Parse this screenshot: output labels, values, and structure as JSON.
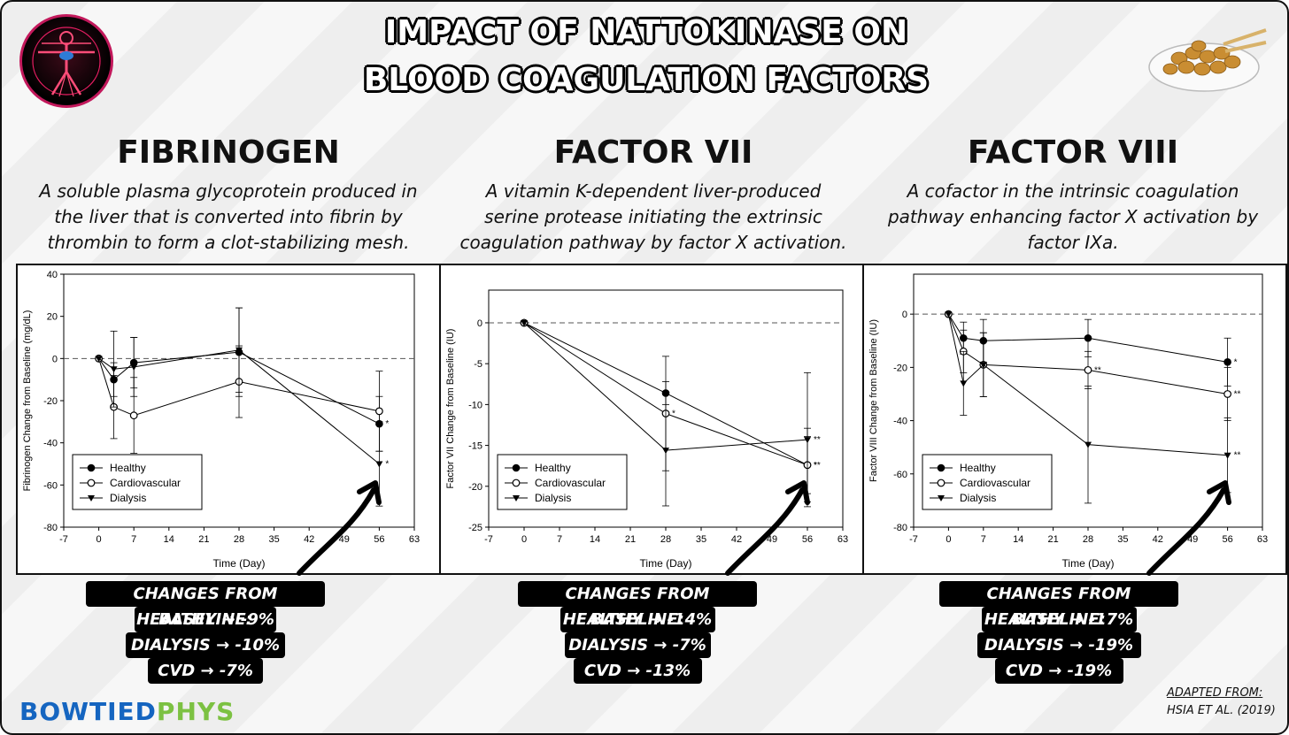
{
  "title": {
    "line1": "IMPACT OF NATTOKINASE ON",
    "line2": "BLOOD COAGULATION FACTORS"
  },
  "sections": [
    {
      "heading": "FIBRINOGEN",
      "description": [
        "A soluble plasma glycoprotein produced in",
        "the liver that is converted into fibrin by",
        "thrombin to form a clot-stabilizing mesh."
      ],
      "changes": {
        "header": "CHANGES FROM BASELINE:",
        "healthy": "HEALTHY → -9%",
        "dialysis": "DIALYSIS → -10%",
        "cvd": "CVD → -7%"
      }
    },
    {
      "heading": "FACTOR VII",
      "description": [
        "A vitamin K-dependent liver-produced",
        "serine protease initiating the extrinsic",
        "coagulation pathway by factor X activation."
      ],
      "changes": {
        "header": "CHANGES FROM BASELINE:",
        "healthy": "HEALTHY → -14%",
        "dialysis": "DIALYSIS → -7%",
        "cvd": "CVD → -13%"
      }
    },
    {
      "heading": "FACTOR VIII",
      "description": [
        "A cofactor in the intrinsic coagulation",
        "pathway enhancing factor X activation by",
        "factor IXa."
      ],
      "changes": {
        "header": "CHANGES FROM BASELINE:",
        "healthy": "HEALTHY → -17%",
        "dialysis": "DIALYSIS → -19%",
        "cvd": "CVD → -19%"
      }
    }
  ],
  "brand": {
    "part1": "BOWTIED",
    "part2": "PHYS"
  },
  "attribution": {
    "line1": "ADAPTED FROM:",
    "line2": "HSIA ET AL. (2019)"
  },
  "chart_data": [
    {
      "type": "line",
      "title": "FIBRINOGEN",
      "xlabel": "Time (Day)",
      "ylabel": "Fibrinogen Change from Baseline (mg/dL)",
      "xlim": [
        -7,
        63
      ],
      "ylim": [
        -80,
        40
      ],
      "xticks": [
        -7,
        0,
        7,
        14,
        21,
        28,
        35,
        42,
        49,
        56,
        63
      ],
      "yticks": [
        -80,
        -60,
        -40,
        -20,
        0,
        20,
        40
      ],
      "legend": "bottom-left",
      "reference_line": 0,
      "series": [
        {
          "name": "Healthy",
          "marker": "filled-circle",
          "x": [
            0,
            3,
            7,
            28,
            56
          ],
          "y": [
            0,
            -10,
            -2,
            3,
            -31
          ],
          "err": [
            0,
            8,
            12,
            21,
            13
          ],
          "sig": [
            "",
            "",
            "",
            "",
            "*"
          ]
        },
        {
          "name": "Cardiovascular",
          "marker": "open-circle",
          "x": [
            0,
            3,
            7,
            28,
            56
          ],
          "y": [
            0,
            -23,
            -27,
            -11,
            -25
          ],
          "err": [
            0,
            15,
            18,
            17,
            19
          ],
          "sig": [
            "",
            "",
            "",
            "",
            ""
          ]
        },
        {
          "name": "Dialysis",
          "marker": "filled-triangle",
          "x": [
            0,
            3,
            7,
            28,
            56
          ],
          "y": [
            0,
            -5,
            -4,
            4,
            -50
          ],
          "err": [
            0,
            18,
            14,
            20,
            20
          ],
          "sig": [
            "",
            "",
            "",
            "",
            "*"
          ]
        }
      ]
    },
    {
      "type": "line",
      "title": "FACTOR VII",
      "xlabel": "Time (Day)",
      "ylabel": "Factor VII Change from Baseline (IU)",
      "xlim": [
        -7,
        63
      ],
      "ylim": [
        -25,
        4
      ],
      "xticks": [
        -7,
        0,
        7,
        14,
        21,
        28,
        35,
        42,
        49,
        56,
        63
      ],
      "yticks": [
        -25,
        -20,
        -15,
        -10,
        -5,
        0
      ],
      "legend": "bottom-left",
      "reference_line": 0,
      "series": [
        {
          "name": "Healthy",
          "marker": "filled-circle",
          "x": [
            0,
            28,
            56
          ],
          "y": [
            0,
            -8.6,
            -17.4
          ],
          "err": [
            0,
            1.4,
            3.5
          ],
          "sig": [
            "",
            "",
            "*"
          ]
        },
        {
          "name": "Cardiovascular",
          "marker": "open-circle",
          "x": [
            0,
            28,
            56
          ],
          "y": [
            0,
            -11.1,
            -17.4
          ],
          "err": [
            0,
            7,
            4.5
          ],
          "sig": [
            "",
            "*",
            "**"
          ]
        },
        {
          "name": "Dialysis",
          "marker": "filled-triangle",
          "x": [
            0,
            28,
            56
          ],
          "y": [
            0,
            -15.6,
            -14.3
          ],
          "err": [
            0,
            6.8,
            8.2
          ],
          "sig": [
            "",
            "",
            "**"
          ]
        }
      ]
    },
    {
      "type": "line",
      "title": "FACTOR VIII",
      "xlabel": "Time (Day)",
      "ylabel": "Factor VIII Change from Baseline (IU)",
      "xlim": [
        -7,
        63
      ],
      "ylim": [
        -80,
        15
      ],
      "xticks": [
        -7,
        0,
        7,
        14,
        21,
        28,
        35,
        42,
        49,
        56,
        63
      ],
      "yticks": [
        -80,
        -60,
        -40,
        -20,
        0
      ],
      "legend": "bottom-left",
      "reference_line": 0,
      "series": [
        {
          "name": "Healthy",
          "marker": "filled-circle",
          "x": [
            0,
            3,
            7,
            28,
            56
          ],
          "y": [
            0,
            -9,
            -10,
            -9,
            -18
          ],
          "err": [
            0,
            6,
            8,
            7,
            9
          ],
          "sig": [
            "",
            "",
            "",
            "",
            "*"
          ]
        },
        {
          "name": "Cardiovascular",
          "marker": "open-circle",
          "x": [
            0,
            3,
            7,
            28,
            56
          ],
          "y": [
            0,
            -14,
            -19,
            -21,
            -30
          ],
          "err": [
            0,
            8,
            12,
            7,
            10
          ],
          "sig": [
            "",
            "",
            "",
            "**",
            "**"
          ]
        },
        {
          "name": "Dialysis",
          "marker": "filled-triangle",
          "x": [
            0,
            3,
            7,
            28,
            56
          ],
          "y": [
            0,
            -26,
            -19,
            -49,
            -53
          ],
          "err": [
            0,
            12,
            12,
            22,
            14
          ],
          "sig": [
            "",
            "",
            "",
            "",
            "**"
          ]
        }
      ]
    }
  ]
}
